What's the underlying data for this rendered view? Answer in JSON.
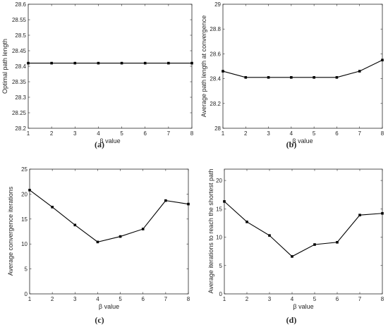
{
  "chart_data": [
    {
      "type": "line",
      "panel_label": "(a)",
      "xlabel": "β value",
      "ylabel": "Optimal path length",
      "x": [
        1,
        2,
        3,
        4,
        5,
        6,
        7,
        8
      ],
      "series": [
        {
          "values": [
            28.41,
            28.41,
            28.41,
            28.41,
            28.41,
            28.41,
            28.41,
            28.41
          ]
        }
      ],
      "xlim": [
        1,
        8
      ],
      "ylim": [
        28.2,
        28.6
      ],
      "xticks": [
        "1",
        "2",
        "3",
        "4",
        "5",
        "6",
        "7",
        "8"
      ],
      "yticks": [
        "28.2",
        "28.25",
        "28.3",
        "28.35",
        "28.4",
        "28.45",
        "28.5",
        "28.55",
        "28.6"
      ],
      "grid": false
    },
    {
      "type": "line",
      "panel_label": "(b)",
      "xlabel": "β value",
      "ylabel": "Average path length at convergence",
      "x": [
        1,
        2,
        3,
        4,
        5,
        6,
        7,
        8
      ],
      "series": [
        {
          "values": [
            28.46,
            28.41,
            28.41,
            28.41,
            28.41,
            28.41,
            28.46,
            28.55
          ]
        }
      ],
      "xlim": [
        1,
        8
      ],
      "ylim": [
        28,
        29
      ],
      "xticks": [
        "1",
        "2",
        "3",
        "4",
        "5",
        "6",
        "7",
        "8"
      ],
      "yticks": [
        "28",
        "28.2",
        "28.4",
        "28.6",
        "28.8",
        "29"
      ],
      "grid": false
    },
    {
      "type": "line",
      "panel_label": "(c)",
      "xlabel": "β value",
      "ylabel": "Average convergence iterations",
      "x": [
        1,
        2,
        3,
        4,
        5,
        6,
        7,
        8
      ],
      "series": [
        {
          "values": [
            20.8,
            17.4,
            13.8,
            10.4,
            11.5,
            13.0,
            18.7,
            18.0
          ]
        }
      ],
      "xlim": [
        1,
        8
      ],
      "ylim": [
        0,
        25
      ],
      "xticks": [
        "1",
        "2",
        "3",
        "4",
        "5",
        "6",
        "7",
        "8"
      ],
      "yticks": [
        "0",
        "5",
        "10",
        "15",
        "20",
        "25"
      ],
      "grid": false
    },
    {
      "type": "line",
      "panel_label": "(d)",
      "xlabel": "β value",
      "ylabel": "Average iterations to reach the shortest path",
      "x": [
        1,
        2,
        3,
        4,
        5,
        6,
        7,
        8
      ],
      "series": [
        {
          "values": [
            16.3,
            12.7,
            10.3,
            6.6,
            8.7,
            9.1,
            13.9,
            14.2
          ]
        }
      ],
      "xlim": [
        1,
        8
      ],
      "ylim": [
        0,
        22
      ],
      "xticks": [
        "1",
        "2",
        "3",
        "4",
        "5",
        "6",
        "7",
        "8"
      ],
      "yticks": [
        "0",
        "5",
        "10",
        "15",
        "20"
      ],
      "grid": false
    }
  ]
}
